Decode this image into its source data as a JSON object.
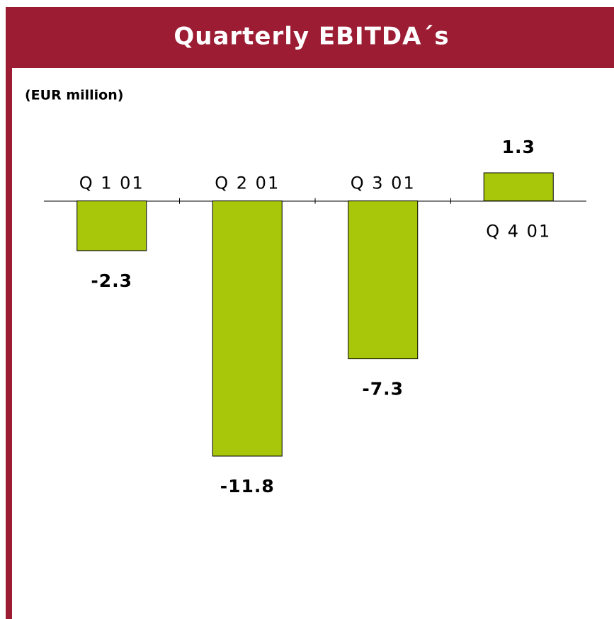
{
  "chart_data": {
    "type": "bar",
    "title": "Quarterly EBITDA´s",
    "subtitle": "(EUR million)",
    "categories": [
      "Q 1 01",
      "Q 2 01",
      "Q 3 01",
      "Q 4 01"
    ],
    "values": [
      -2.3,
      -11.8,
      -7.3,
      1.3
    ],
    "color": "#a8c60a"
  }
}
